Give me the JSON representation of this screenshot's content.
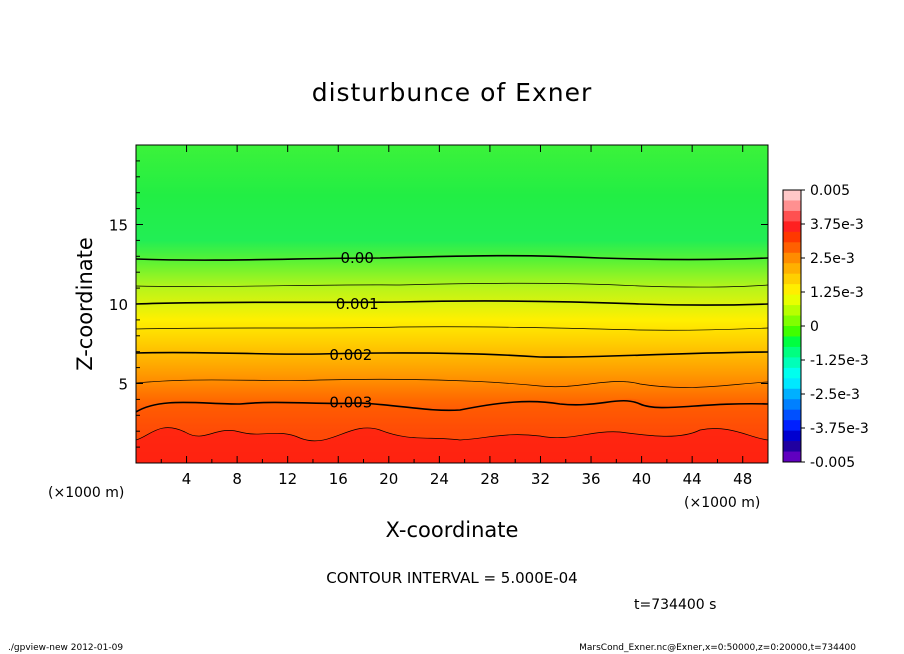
{
  "chart_data": {
    "type": "heatmap",
    "title": "disturbunce of Exner",
    "xlabel": "X-coordinate",
    "ylabel": "Z-coordinate",
    "x_unit": "(×1000 m)",
    "y_unit": "(×1000 m)",
    "xlim": [
      0,
      50
    ],
    "ylim": [
      0,
      20
    ],
    "x_ticks": [
      4,
      8,
      12,
      16,
      20,
      24,
      28,
      32,
      36,
      40,
      44,
      48
    ],
    "y_ticks": [
      5,
      10,
      15
    ],
    "contour_labels": [
      {
        "text": "0.00",
        "x": 17.5,
        "z": 12.9
      },
      {
        "text": "0.001",
        "x": 17.5,
        "z": 10.0
      },
      {
        "text": "0.002",
        "x": 17.0,
        "z": 6.8
      },
      {
        "text": "0.003",
        "x": 17.0,
        "z": 3.8
      }
    ],
    "contour_interval": "CONTOUR INTERVAL = 5.000E-04",
    "time": "t=734400 s",
    "colorbar": {
      "labels": [
        "0.005",
        "3.75e-3",
        "2.5e-3",
        "1.25e-3",
        "0",
        "-1.25e-3",
        "-2.5e-3",
        "-3.75e-3",
        "-0.005"
      ],
      "colors": [
        "#ffc8c8",
        "#ff9090",
        "#ff5050",
        "#ff2020",
        "#ff3800",
        "#ff6000",
        "#ff8c00",
        "#ffb000",
        "#ffd000",
        "#ffee00",
        "#e8ff00",
        "#b8ff00",
        "#80ff00",
        "#40ff00",
        "#00ff40",
        "#00ff80",
        "#00ffb8",
        "#00ffee",
        "#00e8ff",
        "#00b0ff",
        "#0080ff",
        "#0050ff",
        "#0020ff",
        "#0000d0",
        "#2000a0",
        "#6000c0"
      ]
    }
  },
  "footer": {
    "left": "./gpview-new   2012-01-09",
    "right": "MarsCond_Exner.nc@Exner,x=0:50000,z=0:20000,t=734400"
  }
}
